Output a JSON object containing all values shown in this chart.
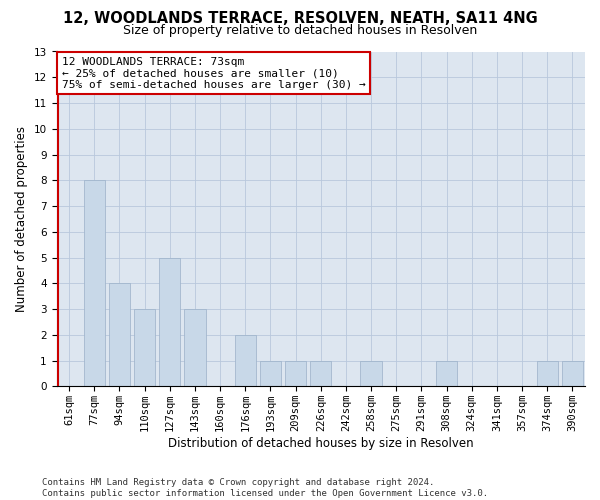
{
  "title": "12, WOODLANDS TERRACE, RESOLVEN, NEATH, SA11 4NG",
  "subtitle": "Size of property relative to detached houses in Resolven",
  "xlabel": "Distribution of detached houses by size in Resolven",
  "ylabel": "Number of detached properties",
  "categories": [
    "61sqm",
    "77sqm",
    "94sqm",
    "110sqm",
    "127sqm",
    "143sqm",
    "160sqm",
    "176sqm",
    "193sqm",
    "209sqm",
    "226sqm",
    "242sqm",
    "258sqm",
    "275sqm",
    "291sqm",
    "308sqm",
    "324sqm",
    "341sqm",
    "357sqm",
    "374sqm",
    "390sqm"
  ],
  "values": [
    0,
    8,
    4,
    3,
    5,
    3,
    0,
    2,
    1,
    1,
    1,
    0,
    1,
    0,
    0,
    1,
    0,
    0,
    0,
    1,
    1
  ],
  "bar_color": "#c8d8e8",
  "bar_edge_color": "#9ab0c8",
  "subject_line_color": "#cc0000",
  "annotation_line1": "12 WOODLANDS TERRACE: 73sqm",
  "annotation_line2": "← 25% of detached houses are smaller (10)",
  "annotation_line3": "75% of semi-detached houses are larger (30) →",
  "annotation_box_facecolor": "#ffffff",
  "annotation_box_edgecolor": "#cc0000",
  "ylim_min": 0,
  "ylim_max": 13,
  "yticks": [
    0,
    1,
    2,
    3,
    4,
    5,
    6,
    7,
    8,
    9,
    10,
    11,
    12,
    13
  ],
  "grid_color": "#b8c8dc",
  "background_color": "#dde6f0",
  "footer_line1": "Contains HM Land Registry data © Crown copyright and database right 2024.",
  "footer_line2": "Contains public sector information licensed under the Open Government Licence v3.0.",
  "title_fontsize": 10.5,
  "subtitle_fontsize": 9,
  "xlabel_fontsize": 8.5,
  "ylabel_fontsize": 8.5,
  "tick_fontsize": 7.5,
  "annotation_fontsize": 8,
  "footer_fontsize": 6.5
}
